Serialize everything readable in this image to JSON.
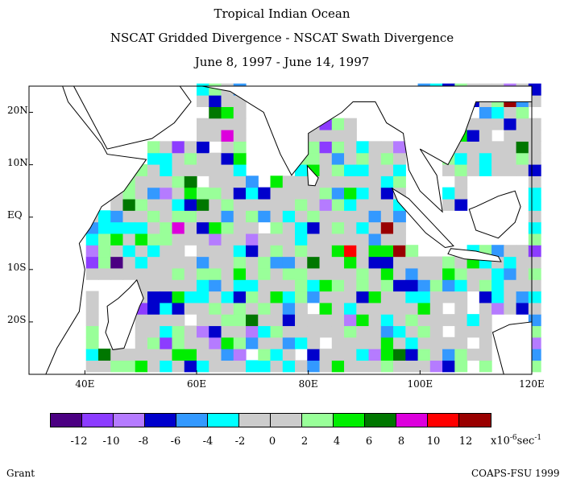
{
  "titles": {
    "line1": "Tropical Indian Ocean",
    "line2": "NSCAT Gridded Divergence - NSCAT Swath Divergence",
    "line3": "June 8, 1997 - June 14, 1997"
  },
  "map": {
    "lon_range": [
      30,
      120
    ],
    "lat_range": [
      -30,
      25
    ],
    "y_ticks": [
      {
        "label": "20N",
        "lat": 20
      },
      {
        "label": "10N",
        "lat": 10
      },
      {
        "label": "EQ",
        "lat": 0
      },
      {
        "label": "10S",
        "lat": -10
      },
      {
        "label": "20S",
        "lat": -20
      }
    ],
    "x_ticks": [
      {
        "label": "40E",
        "lon": 40
      },
      {
        "label": "60E",
        "lon": 60
      },
      {
        "label": "80E",
        "lon": 80
      },
      {
        "label": "100E",
        "lon": 100
      },
      {
        "label": "120E",
        "lon": 120
      }
    ]
  },
  "colorbar": {
    "colors": [
      "#4b0082",
      "#8c3cff",
      "#b57bff",
      "#0000cc",
      "#3399ff",
      "#00ffff",
      "#cccccc",
      "#cccccc",
      "#99ff99",
      "#00ee00",
      "#007700",
      "#dd00dd",
      "#ff0000",
      "#990000"
    ],
    "labels": [
      "-12",
      "-10",
      "-8",
      "-6",
      "-4",
      "-2",
      "0",
      "2",
      "4",
      "6",
      "8",
      "10",
      "12"
    ],
    "units_prefix": "x10",
    "units_exp": "-6",
    "units_suffix": "sec",
    "units_suffix_exp": "-1"
  },
  "credits": {
    "left": "Grant",
    "right": "COAPS-FSU 1999"
  }
}
